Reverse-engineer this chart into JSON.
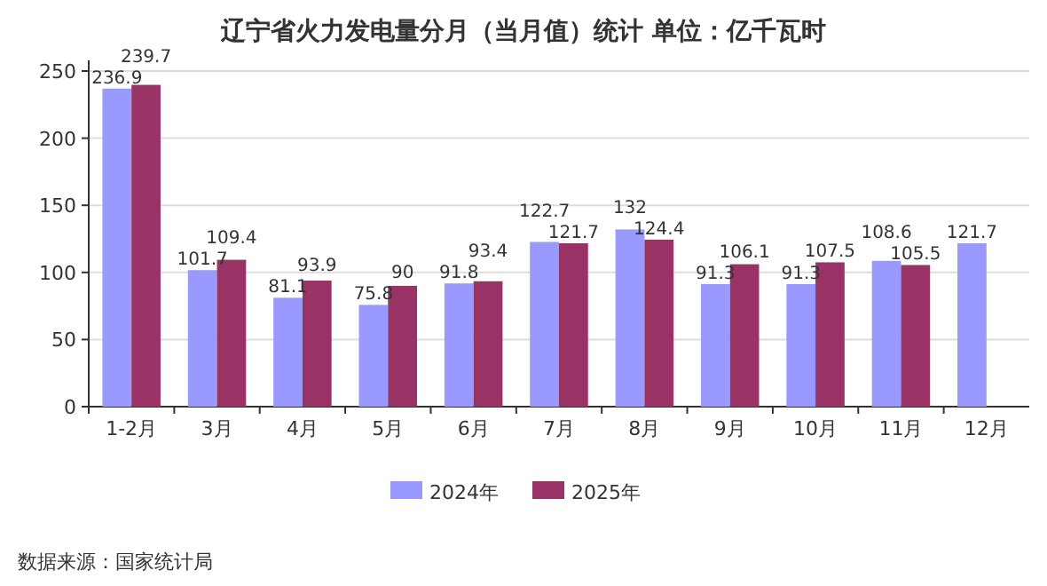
{
  "chart_data": {
    "type": "bar",
    "title": "辽宁省火力发电量分月（当月值）统计 单位：亿千瓦时",
    "categories": [
      "1-2月",
      "3月",
      "4月",
      "5月",
      "6月",
      "7月",
      "8月",
      "9月",
      "10月",
      "11月",
      "12月"
    ],
    "series": [
      {
        "name": "2024年",
        "color": "#9999ff",
        "values": [
          236.9,
          101.7,
          81.1,
          75.8,
          91.8,
          122.7,
          132,
          91.3,
          91.3,
          108.6,
          121.7
        ]
      },
      {
        "name": "2025年",
        "color": "#993366",
        "values": [
          239.7,
          109.4,
          93.9,
          90,
          93.4,
          121.7,
          124.4,
          106.1,
          107.5,
          105.5,
          null
        ]
      }
    ],
    "ylim": [
      0,
      250
    ],
    "yticks": [
      0,
      50,
      100,
      150,
      200,
      250
    ],
    "grid": "y",
    "legend": "bottom",
    "data_labels": true,
    "annotations": [
      "数据来源：国家统计局"
    ]
  }
}
